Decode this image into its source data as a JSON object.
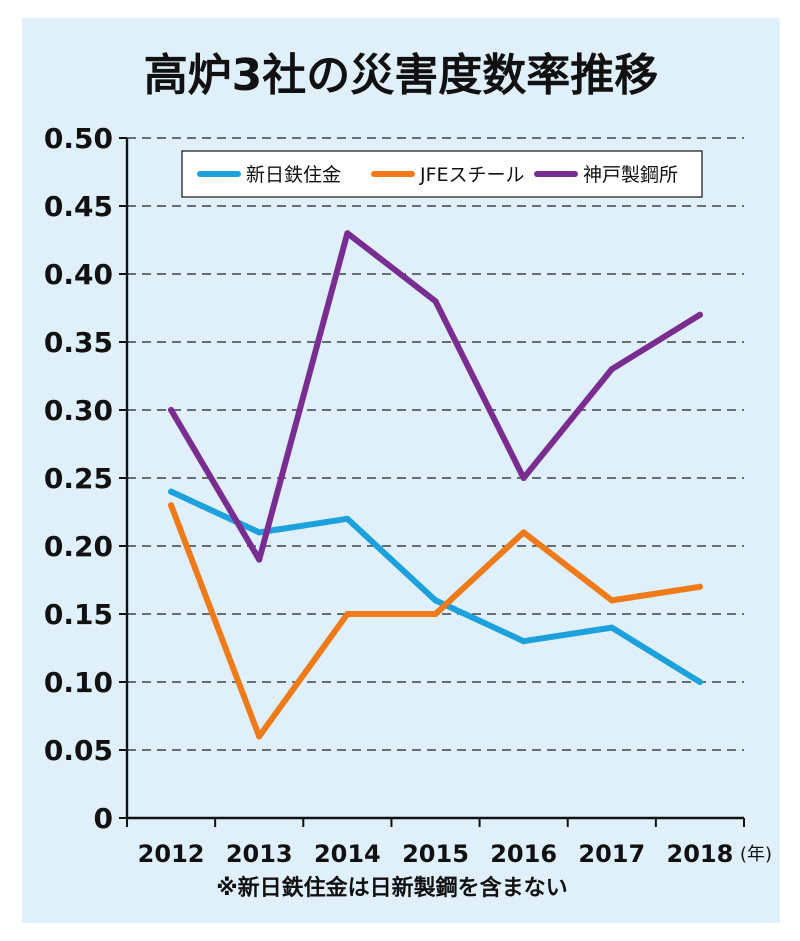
{
  "chart_data": {
    "type": "line",
    "title": "高炉3社の災害度数率推移",
    "categories": [
      "2012",
      "2013",
      "2014",
      "2015",
      "2016",
      "2017",
      "2018"
    ],
    "x_unit": "(年)",
    "y_ticks": [
      "0",
      "0.05",
      "0.10",
      "0.15",
      "0.20",
      "0.25",
      "0.30",
      "0.35",
      "0.40",
      "0.45",
      "0.50"
    ],
    "ylim": [
      0,
      0.5
    ],
    "grid": true,
    "grid_style": "dashed",
    "legend_position": "top",
    "series": [
      {
        "name": "新日鉄住金",
        "color": "#1da1dc",
        "values": [
          0.24,
          0.21,
          0.22,
          0.16,
          0.13,
          0.14,
          0.1
        ]
      },
      {
        "name": "JFEスチール",
        "color": "#ef7a1a",
        "values": [
          0.23,
          0.06,
          0.15,
          0.15,
          0.21,
          0.16,
          0.17
        ]
      },
      {
        "name": "神戸製鋼所",
        "color": "#7a2d91",
        "values": [
          0.3,
          0.19,
          0.43,
          0.38,
          0.25,
          0.33,
          0.37
        ]
      }
    ],
    "note": "※新日鉄住金は日新製鋼を含まない"
  }
}
